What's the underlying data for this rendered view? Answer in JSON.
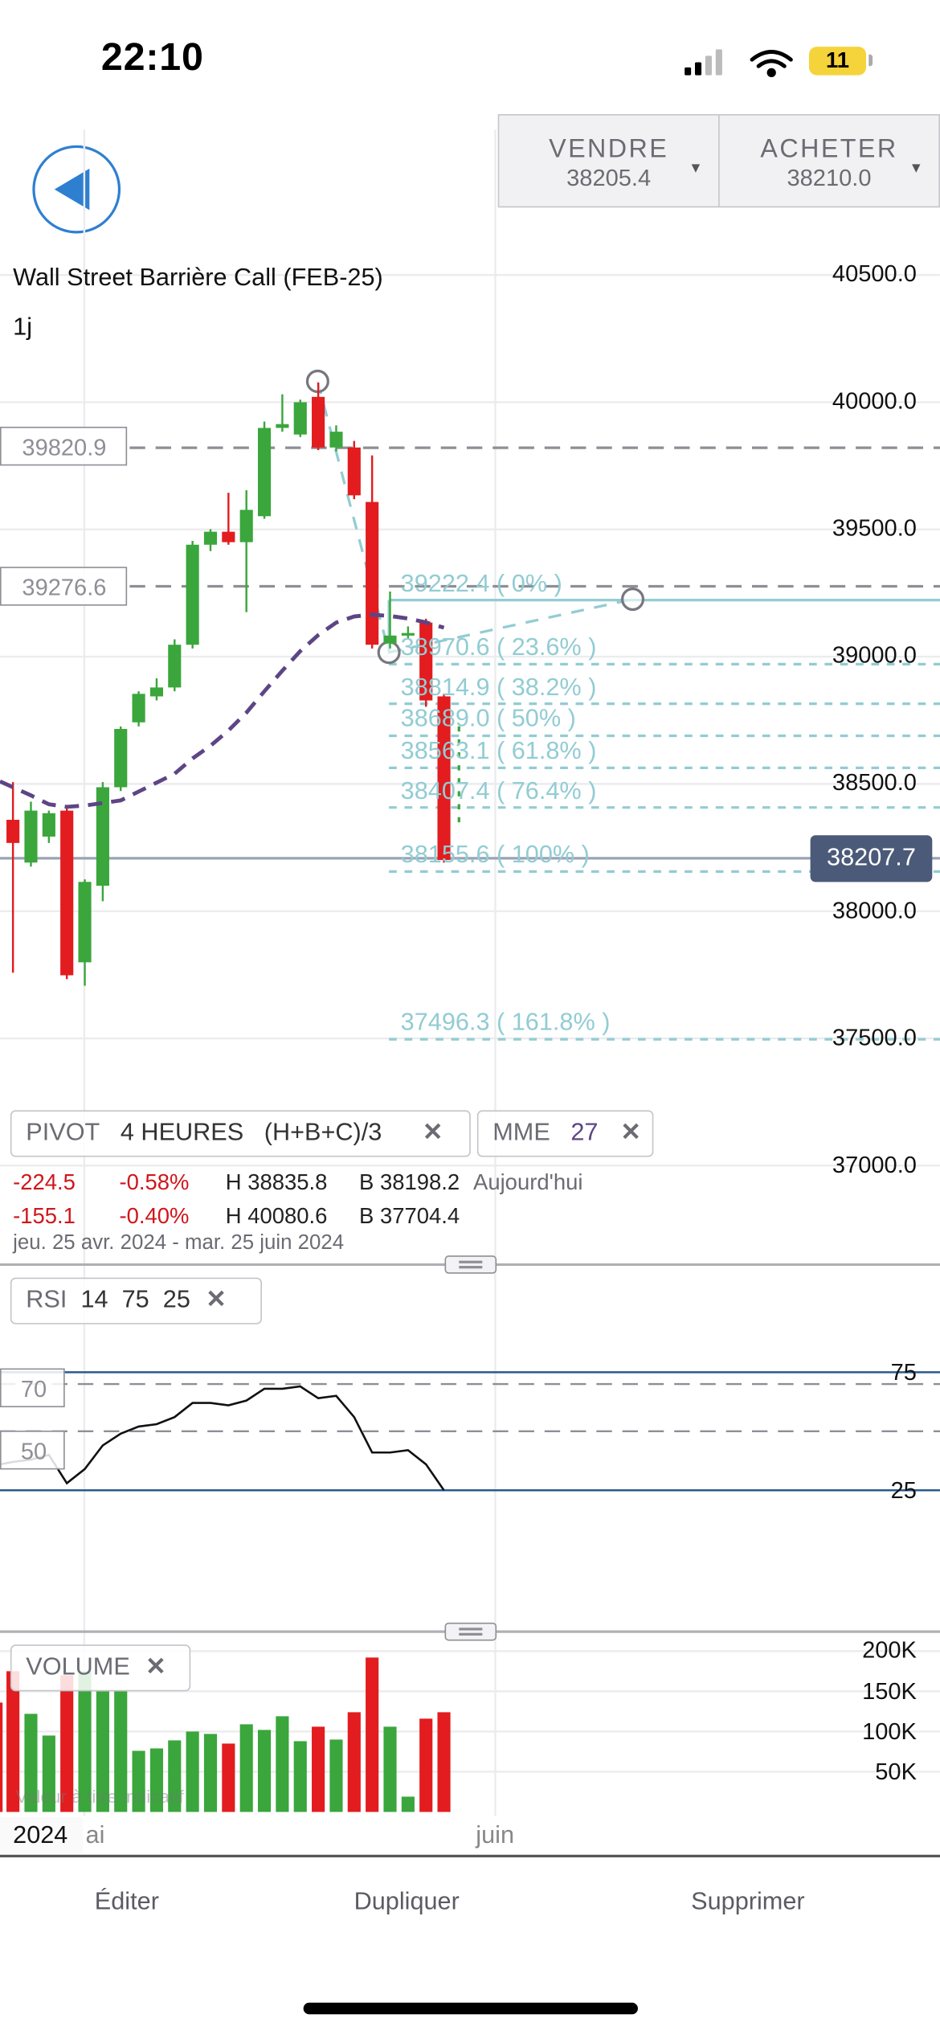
{
  "status_bar": {
    "time": "22:10",
    "battery": "11"
  },
  "header": {
    "back_icon": "back-arrow-icon",
    "sell": {
      "label": "VENDRE",
      "price": "38205.4"
    },
    "buy": {
      "label": "ACHETER",
      "price": "38210.0"
    }
  },
  "instrument": {
    "title": "Wall Street Barrière Call (FEB-25)",
    "period": "1j"
  },
  "colors": {
    "up": "#3aa63c",
    "down": "#e21c1f",
    "fib": "#92ccd3",
    "ema": "#5d4585",
    "accent": "#2f7fd1",
    "price_tag": "#4b5a78"
  },
  "price_axis": {
    "labels": [
      "40500.0",
      "40000.0",
      "39500.0",
      "39000.0",
      "38500.0",
      "38000.0",
      "37500.0",
      "37000.0"
    ]
  },
  "levels": [
    {
      "label": "39820.9",
      "price": 39820.9
    },
    {
      "label": "39276.6",
      "price": 39276.6
    }
  ],
  "current_price": {
    "label": "38207.7",
    "price": 38207.7
  },
  "fibonacci": [
    {
      "label": "39222.4 ( 0% )",
      "price": 39222.4
    },
    {
      "label": "38970.6 ( 23.6% )",
      "price": 38970.6
    },
    {
      "label": "38814.9 ( 38.2% )",
      "price": 38814.9
    },
    {
      "label": "38689.0 ( 50% )",
      "price": 38689.0
    },
    {
      "label": "38563.1 ( 61.8% )",
      "price": 38563.1
    },
    {
      "label": "38407.4 ( 76.4% )",
      "price": 38407.4
    },
    {
      "label": "38155.6 ( 100% )",
      "price": 38155.6
    },
    {
      "label": "37496.3 ( 161.8% )",
      "price": 37496.3
    }
  ],
  "indicators": {
    "pivot": {
      "name": "PIVOT",
      "period": "4 HEURES",
      "formula": "(H+B+C)/3",
      "close": "✕"
    },
    "mme": {
      "name": "MME",
      "value": "27",
      "close": "✕"
    },
    "rsi": {
      "name": "RSI",
      "p1": "14",
      "p2": "75",
      "p3": "25",
      "close": "✕"
    },
    "volume": {
      "name": "VOLUME",
      "close": "✕"
    }
  },
  "stats": {
    "row1": {
      "change": "-224.5",
      "pct": "-0.58%",
      "high": "H 38835.8",
      "low": "B 38198.2",
      "when": "Aujourd'hui"
    },
    "row2": {
      "change": "-155.1",
      "pct": "-0.40%",
      "high": "H 40080.6",
      "low": "B 37704.4"
    },
    "range": "jeu. 25 avr. 2024 - mar. 25 juin 2024"
  },
  "rsi_axis": {
    "upper": "75",
    "lower": "25",
    "dash_upper": "70",
    "dash_mid": "50"
  },
  "volume_axis": [
    "200K",
    "150K",
    "100K",
    "50K"
  ],
  "volume_note": "Valeur à titre indicatif",
  "time_axis": {
    "year": "2024",
    "month1": "ai",
    "month2": "juin"
  },
  "toolbar": {
    "edit": "Éditer",
    "duplicate": "Dupliquer",
    "delete": "Supprimer"
  },
  "chart_data": {
    "type": "candlestick",
    "candles": [
      {
        "o": 38359,
        "c": 38268,
        "h": 38507,
        "l": 37758
      },
      {
        "o": 38191,
        "c": 38395,
        "h": 38430,
        "l": 38175
      },
      {
        "o": 38293,
        "c": 38385,
        "h": 38395,
        "l": 38268
      },
      {
        "o": 38395,
        "c": 37748,
        "h": 38410,
        "l": 37733
      },
      {
        "o": 37799,
        "c": 38115,
        "h": 38125,
        "l": 37707
      },
      {
        "o": 38100,
        "c": 38487,
        "h": 38507,
        "l": 38039
      },
      {
        "o": 38487,
        "c": 38716,
        "h": 38726,
        "l": 38472
      },
      {
        "o": 38742,
        "c": 38854,
        "h": 38864,
        "l": 38726
      },
      {
        "o": 38844,
        "c": 38879,
        "h": 38915,
        "l": 38828
      },
      {
        "o": 38879,
        "c": 39047,
        "h": 39068,
        "l": 38864
      },
      {
        "o": 39047,
        "c": 39440,
        "h": 39455,
        "l": 39032
      },
      {
        "o": 39440,
        "c": 39491,
        "h": 39501,
        "l": 39415
      },
      {
        "o": 39491,
        "c": 39450,
        "h": 39644,
        "l": 39440
      },
      {
        "o": 39450,
        "c": 39577,
        "h": 39654,
        "l": 39175
      },
      {
        "o": 39552,
        "c": 39899,
        "h": 39924,
        "l": 39542
      },
      {
        "o": 39899,
        "c": 39914,
        "h": 40031,
        "l": 39884
      },
      {
        "o": 39873,
        "c": 40000,
        "h": 40010,
        "l": 39863
      },
      {
        "o": 40021,
        "c": 39822,
        "h": 40077,
        "l": 39812
      },
      {
        "o": 39822,
        "c": 39884,
        "h": 39909,
        "l": 39807
      },
      {
        "o": 39822,
        "c": 39634,
        "h": 39848,
        "l": 39619
      },
      {
        "o": 39608,
        "c": 39047,
        "h": 39791,
        "l": 39032
      },
      {
        "o": 39052,
        "c": 39083,
        "h": 39256,
        "l": 39032
      },
      {
        "o": 39083,
        "c": 39093,
        "h": 39119,
        "l": 39068
      },
      {
        "o": 39134,
        "c": 38828,
        "h": 39149,
        "l": 38803
      },
      {
        "o": 38844,
        "c": 38201,
        "h": 38854,
        "l": 38191
      }
    ],
    "ema": [
      38487,
      38455,
      38420,
      38410,
      38415,
      38425,
      38435,
      38470,
      38505,
      38540,
      38600,
      38650,
      38710,
      38780,
      38864,
      38945,
      39022,
      39085,
      39134,
      39158,
      39165,
      39160,
      39150,
      39135,
      39114
    ],
    "rsi": [
      37,
      38,
      40,
      28,
      34,
      44,
      49,
      52,
      53,
      56,
      62,
      62,
      61,
      63,
      68,
      68,
      69,
      64,
      65,
      56,
      41,
      41,
      42,
      36,
      25
    ],
    "volume_k": [
      175,
      122,
      95,
      170,
      175,
      150,
      150,
      76,
      79,
      89,
      100,
      97,
      85,
      109,
      102,
      119,
      88,
      106,
      90,
      124,
      192,
      106,
      19,
      116,
      124
    ],
    "price_range": [
      36900,
      40600
    ],
    "rsi_range": [
      0,
      100
    ],
    "volume_range_k": [
      0,
      200
    ]
  }
}
